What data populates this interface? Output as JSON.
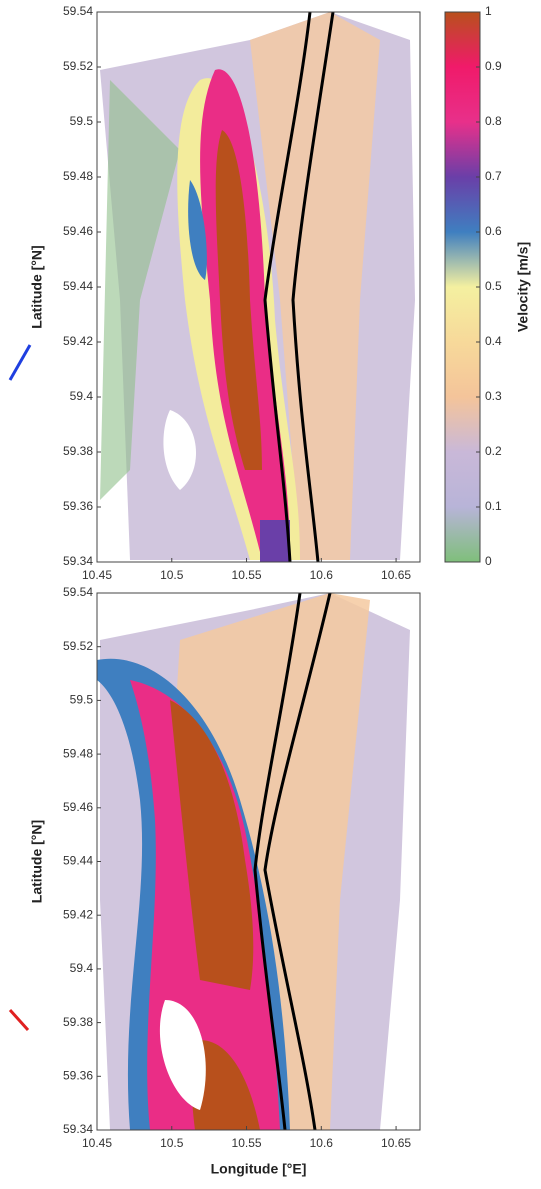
{
  "chart_data": [
    {
      "type": "heatmap",
      "xlim": [
        10.45,
        10.666
      ],
      "ylim": [
        59.34,
        59.54
      ],
      "xticks": [
        10.45,
        10.5,
        10.55,
        10.6,
        10.65
      ],
      "yticks": [
        59.34,
        59.36,
        59.38,
        59.4,
        59.42,
        59.44,
        59.46,
        59.48,
        59.5,
        59.52,
        59.54
      ],
      "ylabel": "Latitude [°N]",
      "colorbar": {
        "label": "Velocity [m/s]",
        "lim": [
          0,
          1
        ],
        "ticks": [
          0,
          0.1,
          0.2,
          0.3,
          0.4,
          0.5,
          0.6,
          0.7,
          0.8,
          0.9,
          1
        ],
        "colormap": [
          "#7fbf7b",
          "#b8b4d8",
          "#c9b8d8",
          "#f4c49a",
          "#f7d99a",
          "#f4f0a0",
          "#3f7fc0",
          "#6a3fa8",
          "#e8308a",
          "#f01a6a",
          "#b8501c"
        ]
      }
    },
    {
      "type": "heatmap",
      "xlim": [
        10.45,
        10.666
      ],
      "ylim": [
        59.34,
        59.54
      ],
      "xticks": [
        10.45,
        10.5,
        10.55,
        10.6,
        10.65
      ],
      "yticks": [
        59.34,
        59.36,
        59.38,
        59.4,
        59.42,
        59.44,
        59.46,
        59.48,
        59.5,
        59.52,
        59.54
      ],
      "xlabel": "Longitude [°E]",
      "ylabel": "Latitude [°N]"
    }
  ]
}
